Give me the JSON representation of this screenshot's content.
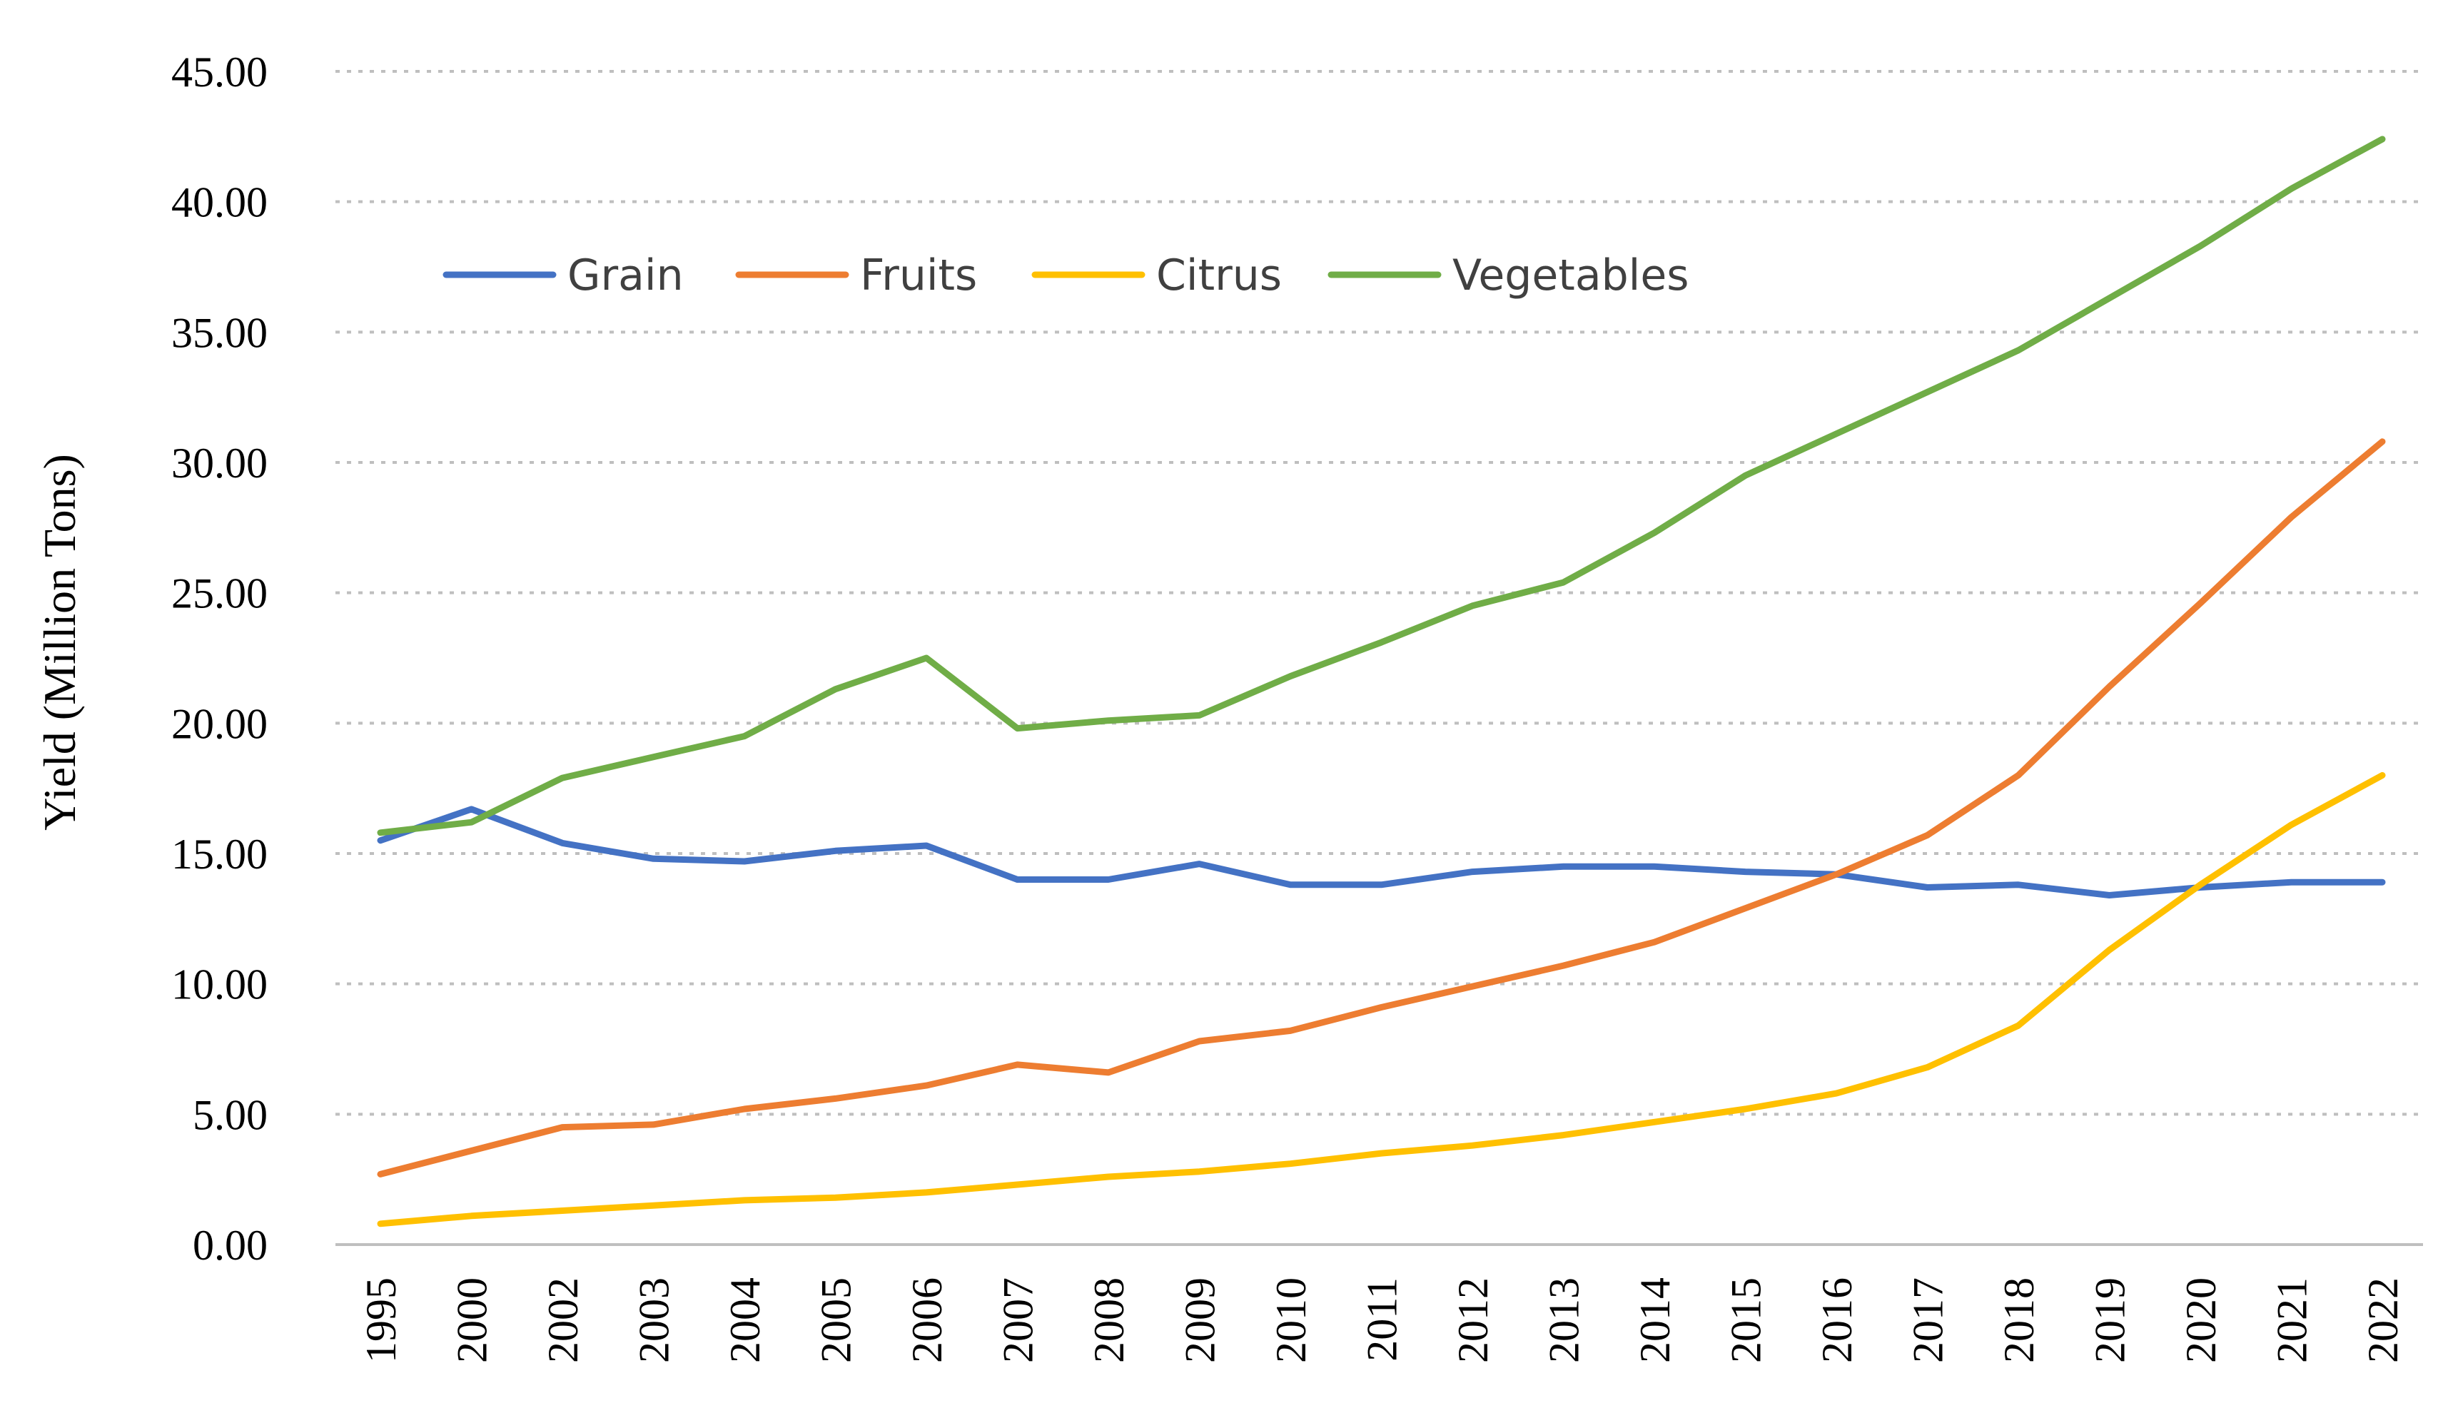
{
  "chart_data": {
    "type": "line",
    "title": "",
    "xlabel": "",
    "ylabel": "Yield (Million Tons)",
    "ylim": [
      0,
      45
    ],
    "yticks": [
      "0.00",
      "5.00",
      "10.00",
      "15.00",
      "20.00",
      "25.00",
      "30.00",
      "35.00",
      "40.00",
      "45.00"
    ],
    "grid": true,
    "legend_position": "top-left",
    "categories": [
      "1995",
      "2000",
      "2002",
      "2003",
      "2004",
      "2005",
      "2006",
      "2007",
      "2008",
      "2009",
      "2010",
      "2011",
      "2012",
      "2013",
      "2014",
      "2015",
      "2016",
      "2017",
      "2018",
      "2019",
      "2020",
      "2021",
      "2022"
    ],
    "series": [
      {
        "name": "Grain",
        "color": "#4472C4",
        "values": [
          15.5,
          16.7,
          15.4,
          14.8,
          14.7,
          15.1,
          15.3,
          14.0,
          14.0,
          14.6,
          13.8,
          13.8,
          14.3,
          14.5,
          14.5,
          14.3,
          14.2,
          13.7,
          13.8,
          13.4,
          13.7,
          13.9,
          13.9
        ]
      },
      {
        "name": "Fruits",
        "color": "#ED7D31",
        "values": [
          2.7,
          3.6,
          4.5,
          4.6,
          5.2,
          5.6,
          6.1,
          6.9,
          6.6,
          7.8,
          8.2,
          9.1,
          9.9,
          10.7,
          11.6,
          12.9,
          14.2,
          15.7,
          18.0,
          21.4,
          24.6,
          27.9,
          30.8
        ]
      },
      {
        "name": "Citrus",
        "color": "#FFC000",
        "values": [
          0.8,
          1.1,
          1.3,
          1.5,
          1.7,
          1.8,
          2.0,
          2.3,
          2.6,
          2.8,
          3.1,
          3.5,
          3.8,
          4.2,
          4.7,
          5.2,
          5.8,
          6.8,
          8.4,
          11.3,
          13.8,
          16.1,
          18.0
        ]
      },
      {
        "name": "Vegetables",
        "color": "#70AD47",
        "values": [
          15.8,
          16.2,
          17.9,
          18.7,
          19.5,
          21.3,
          22.5,
          19.8,
          20.1,
          20.3,
          21.8,
          23.1,
          24.5,
          25.4,
          27.3,
          29.5,
          31.1,
          32.7,
          34.3,
          36.3,
          38.3,
          40.5,
          42.4
        ]
      }
    ]
  }
}
